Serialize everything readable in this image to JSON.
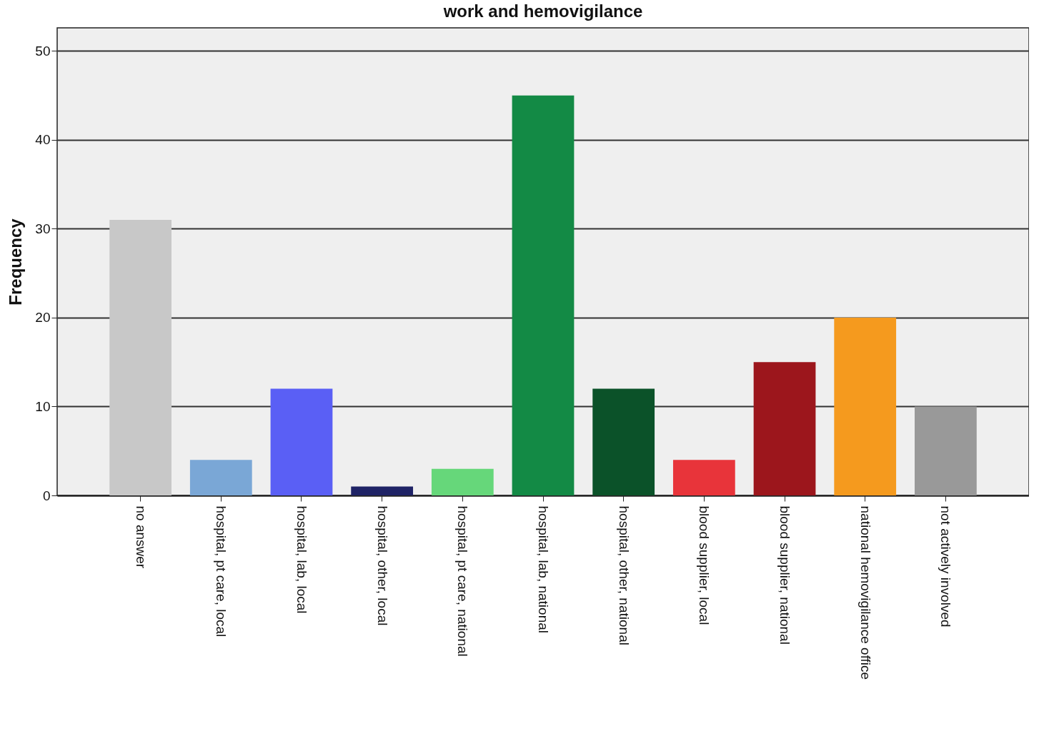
{
  "chart_data": {
    "type": "bar",
    "title": "work and hemovigilance",
    "ylabel": "Frequency",
    "categories": [
      "no answer",
      "hospital, pt care, local",
      "hospital, lab, local",
      "hospital, other, local",
      "hospital, pt care, national",
      "hospital, lab, national",
      "hospital, other, national",
      "blood supplier, local",
      "blood supplier, national",
      "national hemovigilance office",
      "not actively involved"
    ],
    "values": [
      31,
      4,
      12,
      1,
      3,
      45,
      12,
      4,
      15,
      20,
      10
    ],
    "colors": [
      "#c8c8c8",
      "#7aa7d6",
      "#5a5ff5",
      "#1f2366",
      "#66d77a",
      "#138a45",
      "#0b5229",
      "#e8343a",
      "#9c161c",
      "#f59a1e",
      "#999999"
    ],
    "ylim": [
      0,
      52.6
    ],
    "yticks": [
      0,
      10,
      20,
      30,
      40,
      50
    ],
    "grid": "y",
    "legend": false
  }
}
